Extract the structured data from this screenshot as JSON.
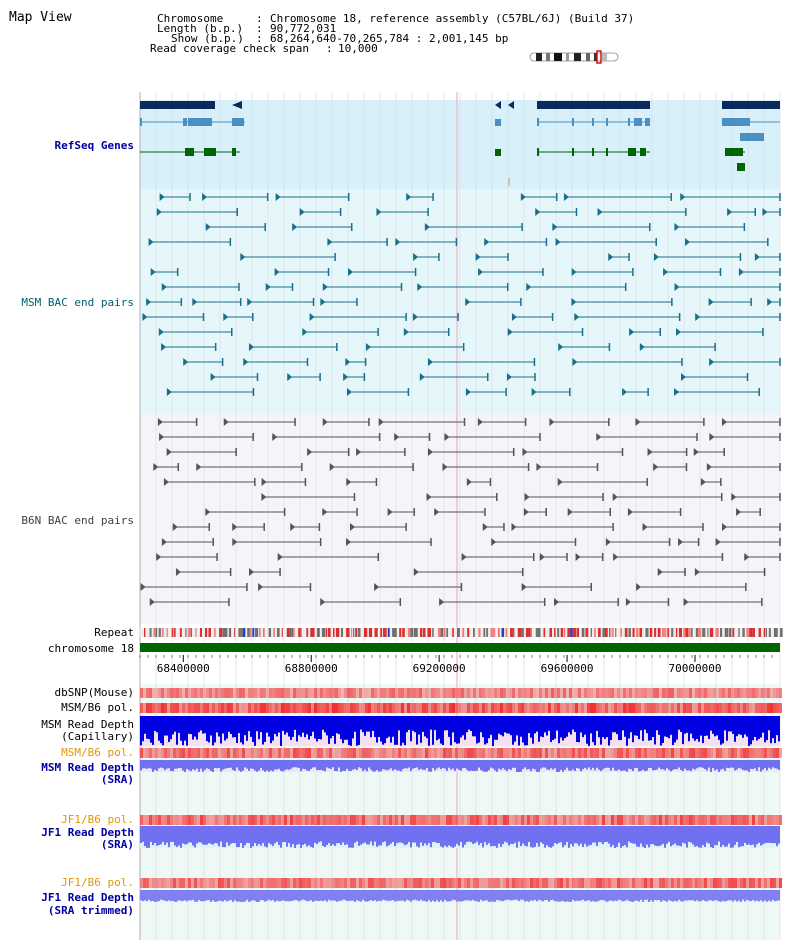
{
  "page": {
    "title": "Map View"
  },
  "info": {
    "chromosome_key": "Chromosome",
    "chromosome_value": "Chromosome 18, reference assembly (C57BL/6J) (Build 37)",
    "length_key": "Length (b.p.)",
    "length_value": "90,772,031",
    "show_key": "Show (b.p.)",
    "show_value": "68,264,640-70,265,784 : 2,001,145 bp",
    "coverage_key": "Read coverage check span",
    "coverage_value": "10,000"
  },
  "tracks": {
    "refseq": "RefSeq Genes",
    "msm_bac": "MSM BAC end pairs",
    "b6n_bac": "B6N BAC end pairs",
    "repeat": "Repeat",
    "chromosome": "chromosome 18",
    "dbsnp": "dbSNP(Mouse)",
    "msm_b6_pol_1": "MSM/B6 pol.",
    "msm_depth_cap_1": "MSM Read Depth",
    "msm_depth_cap_2": "(Capillary)",
    "msm_b6_pol_2": "MSM/B6 pol.",
    "msm_depth_sra_1": "MSM Read Depth",
    "msm_depth_sra_2": "(SRA)",
    "jf1_b6_pol_1": "JF1/B6 pol.",
    "jf1_depth_sra_1": "JF1 Read Depth",
    "jf1_depth_sra_2": "(SRA)",
    "jf1_b6_pol_2": "JF1/B6 pol.",
    "jf1_depth_trim_1": "JF1 Read Depth",
    "jf1_depth_trim_2": "(SRA trimmed)"
  },
  "axis": {
    "ticks": [
      "68400000",
      "68800000",
      "69200000",
      "69600000",
      "70000000"
    ],
    "tick_values": [
      68400000,
      68800000,
      69200000,
      69600000,
      70000000
    ],
    "start": 68264640,
    "end": 70265784
  },
  "colors": {
    "gene_dark": "#0a2a5e",
    "gene_light": "#4a90c0",
    "gene_green": "#006400",
    "msm_bac": "#1a6f8a",
    "b6n_bac": "#555555",
    "chromosome": "#006400",
    "depth_blue": "#0000e0",
    "depth_light": "#7070f0",
    "pol_red": "#f04040"
  }
}
